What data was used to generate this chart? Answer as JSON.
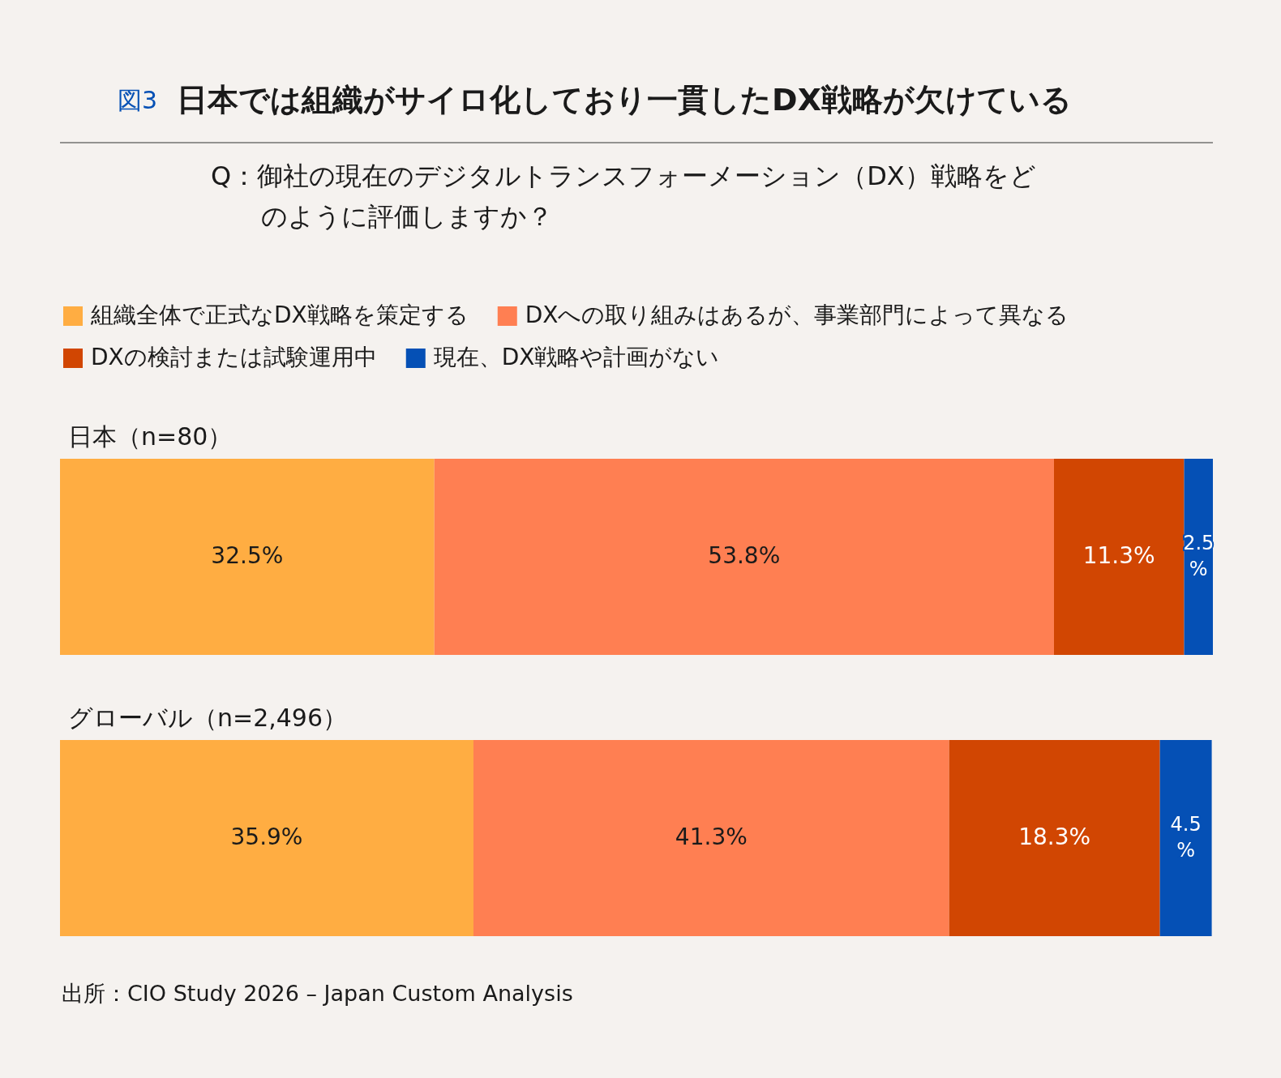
{
  "chart_data": {
    "type": "bar",
    "orientation": "horizontal",
    "stacked": true,
    "legend": "top",
    "title": "日本では組織がサイロ化しており一貫したDX戦略が欠けている",
    "subtitle": "Q：御社の現在のデジタルトランスフォーメーション（DX）戦略をどのように評価しますか？",
    "annotations": [
      "図3",
      "出所：CIO Study 2026 – Japan Custom Analysis"
    ],
    "categories": [
      "日本（n=80）",
      "グローバル（n=2,496）"
    ],
    "series": [
      {
        "name": "組織全体で正式なDX戦略を策定する",
        "color": "#ffad42",
        "values": [
          32.5,
          35.9
        ],
        "value_labels": [
          "32.5%",
          "35.9%"
        ]
      },
      {
        "name": "DXへの取り組みはあるが、事業部門によって異なる",
        "color": "#ff7f52",
        "values": [
          53.8,
          41.3
        ],
        "value_labels": [
          "53.8%",
          "41.3%"
        ]
      },
      {
        "name": "DXの検討または試験運用中",
        "color": "#d14602",
        "values": [
          11.3,
          18.3
        ],
        "value_labels": [
          "11.3%",
          "18.3%"
        ]
      },
      {
        "name": "現在、DX戦略や計画がない",
        "color": "#0550b5",
        "values": [
          2.5,
          4.5
        ],
        "value_labels": [
          "2.5%",
          "4.5%"
        ]
      }
    ]
  }
}
